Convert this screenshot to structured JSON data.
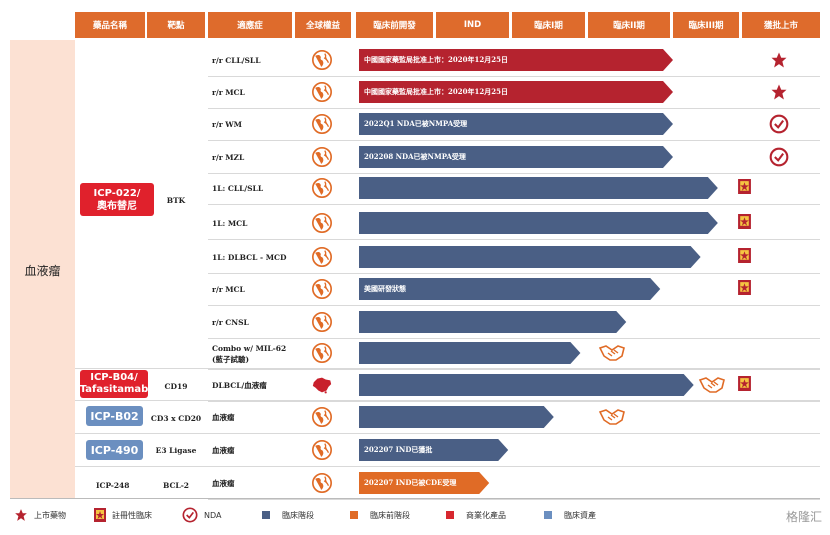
{
  "header": {
    "drug": "藥品名稱",
    "target": "靶點",
    "indication": "適應症",
    "rights": "全球權益",
    "preclinical": "臨床前開發",
    "ind": "IND",
    "phase1": "臨床I期",
    "phase2": "臨床II期",
    "phase3": "臨床III期",
    "approved": "獲批上市"
  },
  "category": "血液瘤",
  "drugs": {
    "icp022": "ICP-022/\n奧布替尼",
    "icpb04": "ICP-B04/\nTafasitamab",
    "icpb02": "ICP-B02",
    "icp490": "ICP-490",
    "icp248": "ICP-248"
  },
  "targets": {
    "btk": "BTK",
    "cd19": "CD19",
    "cd3cd20": "CD3 x CD20",
    "e3": "E3 Ligase",
    "bcl2": "BCL-2"
  },
  "chart_data": {
    "type": "bar",
    "stages": [
      "臨床前開發",
      "IND",
      "臨床I期",
      "臨床II期",
      "臨床III期",
      "獲批上市"
    ],
    "rows": [
      {
        "indication": "r/r CLL/SLL",
        "label": "中國國家藥監局批准上市：2020年12月25日",
        "end": 4.0,
        "color": "#b5232f",
        "approved": "star"
      },
      {
        "indication": "r/r MCL",
        "label": "中國國家藥監局批准上市：2020年12月25日",
        "end": 4.0,
        "color": "#b5232f",
        "approved": "star"
      },
      {
        "indication": "r/r WM",
        "label": "2022Q1 NDA已被NMPA受理",
        "end": 4.0,
        "color": "#4a5f85",
        "approved": "nda"
      },
      {
        "indication": "r/r MZL",
        "label": "202208 NDA已被NMPA受理",
        "end": 4.0,
        "color": "#4a5f85",
        "approved": "nda"
      },
      {
        "indication": "1L: CLL/SLL",
        "label": "",
        "end": 4.65,
        "color": "#4a5f85",
        "approved": "reg"
      },
      {
        "indication": "1L: MCL",
        "label": "",
        "end": 4.65,
        "color": "#4a5f85",
        "approved": "reg"
      },
      {
        "indication": "1L: DLBCL - MCD",
        "label": "",
        "end": 4.4,
        "color": "#4a5f85",
        "approved": "reg"
      },
      {
        "indication": "r/r MCL",
        "label": "美國研發狀態",
        "end": 3.85,
        "color": "#4a5f85",
        "approved": "reg"
      },
      {
        "indication": "r/r CNSL",
        "label": "",
        "end": 3.45,
        "color": "#4a5f85",
        "approved": ""
      },
      {
        "indication": "Combo w/ MIL-62\n(藍子試驗)",
        "label": "",
        "end": 2.9,
        "color": "#4a5f85",
        "approved": ""
      },
      {
        "indication": "DLBCL/血液瘤",
        "label": "",
        "end": 4.3,
        "color": "#4a5f85",
        "approved": "reg"
      },
      {
        "indication": "血液瘤",
        "label": "",
        "end": 2.55,
        "color": "#4a5f85",
        "approved": ""
      },
      {
        "indication": "血液瘤",
        "label": "202207 IND已獲批",
        "end": 1.95,
        "color": "#4a5f85",
        "approved": ""
      },
      {
        "indication": "血液瘤",
        "label": "202207 IND已被CDE受理",
        "end": 1.7,
        "color": "#e06b26",
        "approved": ""
      }
    ]
  },
  "legend": {
    "listed": "上市藥物",
    "registrational": "註冊性臨床",
    "nda": "NDA",
    "clinical": "臨床階段",
    "preclinical": "臨床前階段",
    "commercial": "商業化產品",
    "asset": "臨床資產"
  },
  "colors": {
    "header": "#de6b2c",
    "red": "#b5232f",
    "blue": "#4a5f85",
    "orange": "#e06b26",
    "drugRed": "#e0212c",
    "drugBlue": "#6b8fc0"
  },
  "watermark": "格隆汇"
}
